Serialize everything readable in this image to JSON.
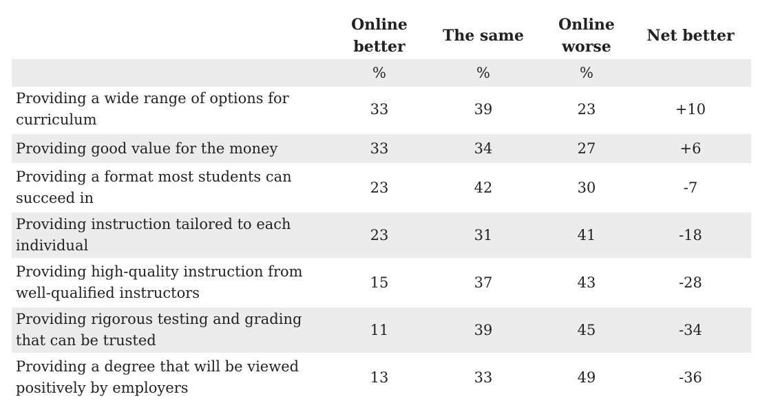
{
  "chart_data": {
    "type": "table",
    "columns": [
      "Online better",
      "The same",
      "Online worse",
      "Net better"
    ],
    "column_headers": [
      [
        "Online",
        "better"
      ],
      [
        "The same"
      ],
      [
        "Online",
        "worse"
      ],
      [
        "Net better"
      ]
    ],
    "units": [
      "%",
      "%",
      "%",
      ""
    ],
    "rows": [
      {
        "label_lines": [
          "Providing a wide range of options for",
          "curriculum"
        ],
        "values": [
          "33",
          "39",
          "23",
          "+10"
        ]
      },
      {
        "label_lines": [
          "Providing good value for the money"
        ],
        "values": [
          "33",
          "34",
          "27",
          "+6"
        ]
      },
      {
        "label_lines": [
          "Providing a format most students can",
          "succeed in"
        ],
        "values": [
          "23",
          "42",
          "30",
          "-7"
        ]
      },
      {
        "label_lines": [
          "Providing instruction tailored to each",
          "individual"
        ],
        "values": [
          "23",
          "31",
          "41",
          "-18"
        ]
      },
      {
        "label_lines": [
          "Providing high-quality instruction from",
          "well-qualified instructors"
        ],
        "values": [
          "15",
          "37",
          "43",
          "-28"
        ]
      },
      {
        "label_lines": [
          "Providing rigorous testing and grading",
          "that can be trusted"
        ],
        "values": [
          "11",
          "39",
          "45",
          "-34"
        ]
      },
      {
        "label_lines": [
          "Providing a degree that will be viewed",
          "positively by employers"
        ],
        "values": [
          "13",
          "33",
          "49",
          "-36"
        ]
      }
    ]
  }
}
